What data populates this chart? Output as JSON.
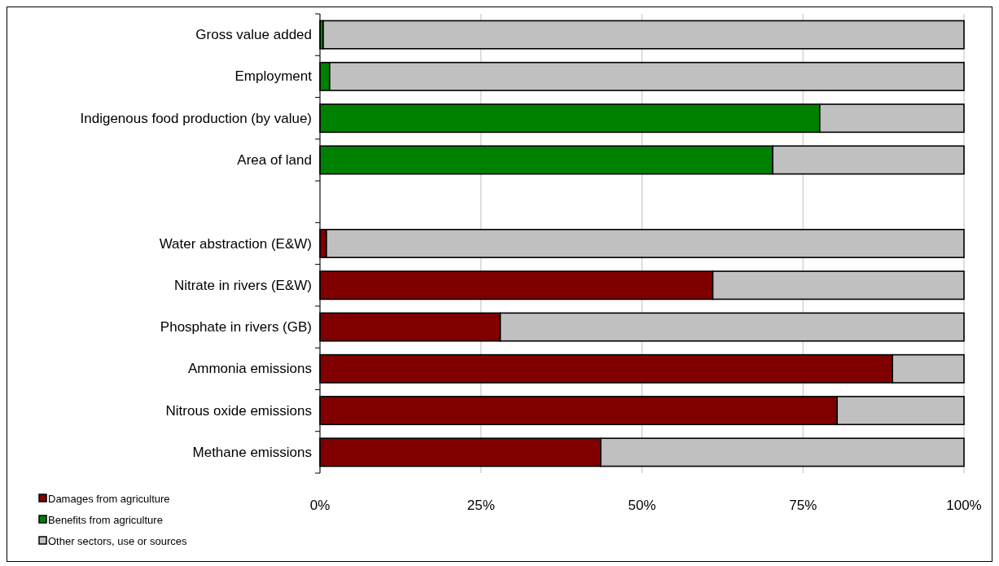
{
  "chart_data": {
    "type": "bar",
    "orientation": "horizontal",
    "stacked": true,
    "categories": [
      "Gross value added",
      "Employment",
      "Indigenous food production (by value)",
      "Area of land",
      null,
      "Water abstraction (E&W)",
      "Nitrate in rivers (E&W)",
      "Phosphate in rivers (GB)",
      "Ammonia emissions",
      "Nitrous oxide emissions",
      "Methane emissions"
    ],
    "series": [
      {
        "name": "Damages from agriculture",
        "color": "#800000",
        "values": [
          null,
          null,
          null,
          null,
          null,
          1.0,
          61.0,
          28.0,
          88.9,
          80.3,
          43.6
        ]
      },
      {
        "name": "Benefits from agriculture",
        "color": "#008000",
        "values": [
          0.5,
          1.5,
          77.6,
          70.3,
          null,
          null,
          null,
          null,
          null,
          null,
          null
        ]
      },
      {
        "name": "Other sectors, use or sources",
        "color": "#c0c0c0",
        "values": [
          99.5,
          98.5,
          22.4,
          29.7,
          null,
          99.0,
          39.0,
          72.0,
          11.1,
          19.7,
          56.4
        ]
      }
    ],
    "xlim": [
      0,
      100
    ],
    "xticks": [
      {
        "value": 0,
        "label": "0%"
      },
      {
        "value": 25,
        "label": "25%"
      },
      {
        "value": 50,
        "label": "50%"
      },
      {
        "value": 75,
        "label": "75%"
      },
      {
        "value": 100,
        "label": "100%"
      }
    ],
    "grid": "x",
    "legend": "bottom left"
  }
}
